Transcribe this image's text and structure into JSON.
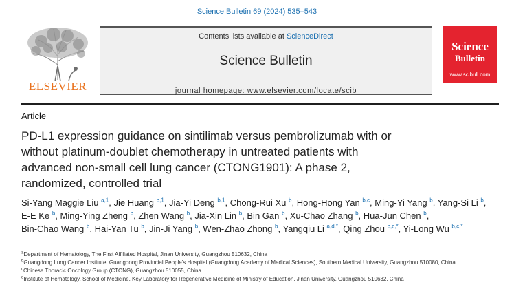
{
  "journal_ref": "Science Bulletin 69 (2024) 535–543",
  "header": {
    "contents_prefix": "Contents lists available at ",
    "contents_link": "ScienceDirect",
    "journal_title": "Science Bulletin",
    "homepage": "journal homepage: www.elsevier.com/locate/scib",
    "publisher_logo_text": "ELSEVIER",
    "cover": {
      "line1": "Science",
      "line2": "Bulletin",
      "url": "www.scibull.com"
    }
  },
  "article_type": "Article",
  "title_lines": [
    "PD-L1 expression guidance on sintilimab versus pembrolizumab with or",
    "without platinum-doublet chemotherapy in untreated patients with",
    "advanced non-small cell lung cancer (CTONG1901): A phase 2,",
    "randomized, controlled trial"
  ],
  "authors": [
    {
      "name": "Si-Yang Maggie Liu",
      "sup": "a,1"
    },
    {
      "name": "Jie Huang",
      "sup": "b,1"
    },
    {
      "name": "Jia-Yi Deng",
      "sup": "b,1"
    },
    {
      "name": "Chong-Rui Xu",
      "sup": "b"
    },
    {
      "name": "Hong-Hong Yan",
      "sup": "b,c"
    },
    {
      "name": "Ming-Yi Yang",
      "sup": "b"
    },
    {
      "name": "Yang-Si Li",
      "sup": "b"
    },
    {
      "name": "E-E Ke",
      "sup": "b"
    },
    {
      "name": "Ming-Ying Zheng",
      "sup": "b"
    },
    {
      "name": "Zhen Wang",
      "sup": "b"
    },
    {
      "name": "Jia-Xin Lin",
      "sup": "b"
    },
    {
      "name": "Bin Gan",
      "sup": "b"
    },
    {
      "name": "Xu-Chao Zhang",
      "sup": "b"
    },
    {
      "name": "Hua-Jun Chen",
      "sup": "b"
    },
    {
      "name": "Bin-Chao Wang",
      "sup": "b"
    },
    {
      "name": "Hai-Yan Tu",
      "sup": "b"
    },
    {
      "name": "Jin-Ji Yang",
      "sup": "b"
    },
    {
      "name": "Wen-Zhao Zhong",
      "sup": "b"
    },
    {
      "name": "Yangqiu Li",
      "sup": "a,d,*"
    },
    {
      "name": "Qing Zhou",
      "sup": "b,c,*"
    },
    {
      "name": "Yi-Long Wu",
      "sup": "b,c,*"
    }
  ],
  "affiliations": [
    {
      "mark": "a",
      "text": "Department of Hematology, The First Affiliated Hospital, Jinan University, Guangzhou 510632, China"
    },
    {
      "mark": "b",
      "text": "Guangdong Lung Cancer Institute, Guangdong Provincial People's Hospital (Guangdong Academy of Medical Sciences), Southern Medical University, Guangzhou 510080, China"
    },
    {
      "mark": "c",
      "text": "Chinese Thoracic Oncology Group (CTONG), Guangzhou 510055, China"
    },
    {
      "mark": "d",
      "text": "Institute of Hematology, School of Medicine, Key Laboratory for Regenerative Medicine of Ministry of Education, Jinan University, Guangzhou 510632, China"
    }
  ],
  "colors": {
    "link_blue": "#1a6fb0",
    "elsevier_orange": "#e9711c",
    "cover_red": "#e4232f"
  }
}
